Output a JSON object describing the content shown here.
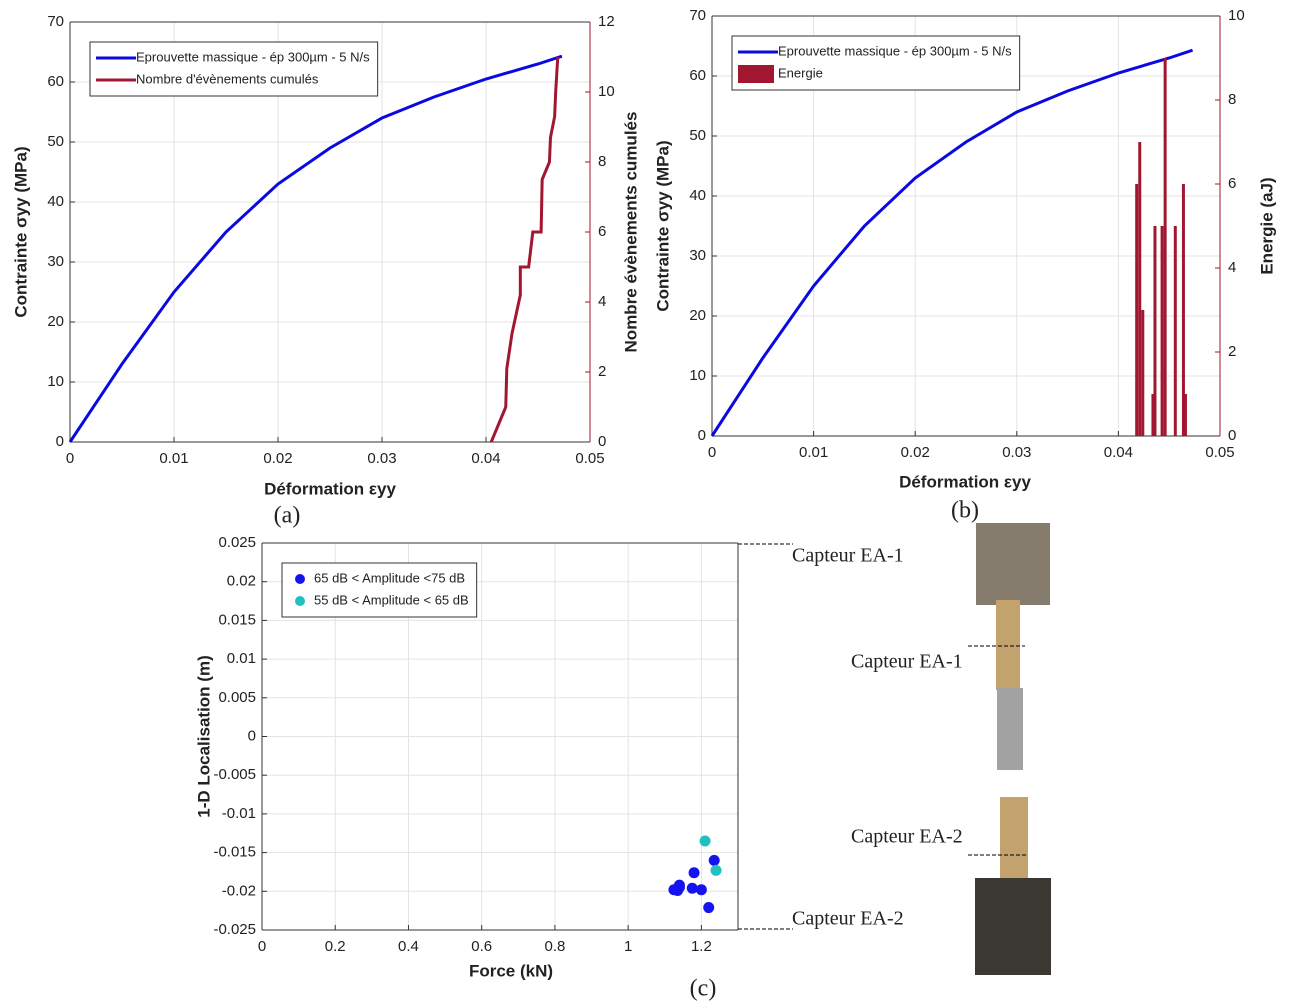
{
  "chart_data": [
    {
      "type": "line",
      "label": "(a)",
      "xlabel": "Déformation εyy",
      "ylabel": "Contrainte σyy (MPa)",
      "y2label": "Nombre évènements cumulés",
      "xlim": [
        0,
        0.05
      ],
      "xticks": [
        0,
        0.01,
        0.02,
        0.03,
        0.04,
        0.05
      ],
      "ylim": [
        0,
        70
      ],
      "yticks": [
        0,
        10,
        20,
        30,
        40,
        50,
        60,
        70
      ],
      "y2lim": [
        0,
        12
      ],
      "y2ticks": [
        0,
        2,
        4,
        6,
        8,
        10,
        12
      ],
      "grid": true,
      "legend": "upper left",
      "series": [
        {
          "name": "Eprouvette massique - ép 300µm - 5 N/s",
          "color": "#0a0ae0",
          "x": [
            0,
            0.005,
            0.01,
            0.015,
            0.02,
            0.025,
            0.03,
            0.035,
            0.04,
            0.045,
            0.0473
          ],
          "values": [
            0,
            13,
            25,
            35,
            43,
            49,
            54,
            57.5,
            60.5,
            63,
            64.3
          ]
        },
        {
          "name": "Nombre d'évènements cumulés",
          "color": "#a0172f",
          "axis": "y2",
          "x": [
            0.0405,
            0.0419,
            0.042,
            0.0425,
            0.0433,
            0.0433,
            0.0441,
            0.0445,
            0.0453,
            0.0454,
            0.0461,
            0.0462,
            0.0466,
            0.0467,
            0.0469
          ],
          "values": [
            0,
            1,
            2.1,
            3.1,
            4.2,
            5,
            5,
            6,
            6,
            7.5,
            8,
            8.7,
            9.3,
            10,
            11
          ]
        }
      ]
    },
    {
      "type": "line",
      "label": "(b)",
      "xlabel": "Déformation εyy",
      "ylabel": "Contrainte σyy (MPa)",
      "y2label": "Energie (aJ)",
      "xlim": [
        0,
        0.05
      ],
      "xticks": [
        0,
        0.01,
        0.02,
        0.03,
        0.04,
        0.05
      ],
      "ylim": [
        0,
        70
      ],
      "yticks": [
        0,
        10,
        20,
        30,
        40,
        50,
        60,
        70
      ],
      "y2lim": [
        0,
        10
      ],
      "y2ticks": [
        0,
        2,
        4,
        6,
        8,
        10
      ],
      "grid": true,
      "legend": "upper left",
      "series": [
        {
          "name": "Eprouvette massique - ép 300µm - 5 N/s",
          "color": "#0a0ae0",
          "x": [
            0,
            0.005,
            0.01,
            0.015,
            0.02,
            0.025,
            0.03,
            0.035,
            0.04,
            0.045,
            0.0473
          ],
          "values": [
            0,
            13,
            25,
            35,
            43,
            49,
            54,
            57.5,
            60.5,
            63,
            64.3
          ]
        },
        {
          "name": "Energie",
          "color": "#a0172f",
          "axis": "y2",
          "type": "bar",
          "x": [
            0.0418,
            0.0421,
            0.0424,
            0.0434,
            0.0436,
            0.0443,
            0.0446,
            0.0456,
            0.0464,
            0.0466
          ],
          "values": [
            6,
            7,
            3,
            1,
            5,
            5,
            9,
            5,
            6,
            1
          ]
        }
      ]
    },
    {
      "type": "scatter",
      "label": "(c)",
      "xlabel": "Force (kN)",
      "ylabel": "1-D Localisation (m)",
      "xlim": [
        0,
        1.3
      ],
      "xticks": [
        0,
        0.2,
        0.4,
        0.6,
        0.8,
        1,
        1.2
      ],
      "ylim": [
        -0.025,
        0.025
      ],
      "yticks": [
        -0.025,
        -0.02,
        -0.015,
        -0.01,
        -0.005,
        0,
        0.005,
        0.01,
        0.015,
        0.02,
        0.025
      ],
      "grid": true,
      "legend": "upper left",
      "series": [
        {
          "name": "65 dB < Amplitude <75 dB",
          "color": "#1414f0",
          "x": [
            1.125,
            1.135,
            1.14,
            1.14,
            1.175,
            1.18,
            1.2,
            1.22,
            1.235
          ],
          "values": [
            -0.0198,
            -0.0199,
            -0.0195,
            -0.0192,
            -0.0196,
            -0.0176,
            -0.0198,
            -0.0221,
            -0.016
          ]
        },
        {
          "name": "55 dB < Amplitude < 65 dB",
          "color": "#20c0c0",
          "x": [
            1.21,
            1.24
          ],
          "values": [
            -0.0135,
            -0.0173
          ]
        }
      ],
      "annotations": [
        "Capteur EA-1",
        "Capteur EA-1",
        "Capteur EA-2",
        "Capteur EA-2"
      ]
    }
  ]
}
